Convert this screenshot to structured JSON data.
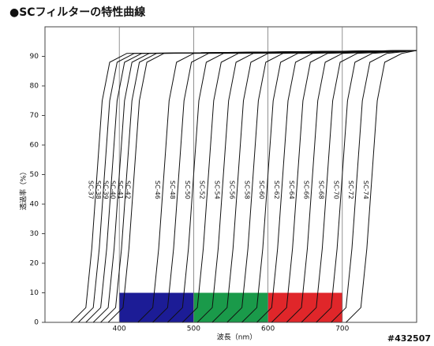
{
  "chart_data": {
    "type": "line",
    "title": "●SCフィルターの特性曲線",
    "xlabel": "波長（nm）",
    "ylabel": "透過率（%）",
    "watermark": "#432507",
    "xlim": [
      300,
      800
    ],
    "ylim": [
      0,
      100
    ],
    "xticks": [
      400,
      500,
      600,
      700
    ],
    "yticks": [
      0,
      10,
      20,
      30,
      40,
      50,
      60,
      70,
      80,
      90
    ],
    "grid": "x",
    "band_top": 10,
    "bands": [
      {
        "from": 400,
        "to": 500,
        "color": "#1c1c96"
      },
      {
        "from": 500,
        "to": 600,
        "color": "#1a9a4a"
      },
      {
        "from": 600,
        "to": 700,
        "color": "#e0262a"
      }
    ],
    "series": [
      {
        "name": "SC-37",
        "color": "#111",
        "x": [
          335,
          355,
          363,
          370,
          377,
          387,
          410,
          800
        ],
        "values": [
          0,
          5,
          25,
          50,
          75,
          88,
          91,
          92
        ]
      },
      {
        "name": "SC-38",
        "color": "#111",
        "x": [
          345,
          365,
          373,
          380,
          387,
          397,
          420,
          800
        ],
        "values": [
          0,
          5,
          25,
          50,
          75,
          88,
          91,
          92
        ]
      },
      {
        "name": "SC-39",
        "color": "#111",
        "x": [
          355,
          375,
          383,
          390,
          397,
          407,
          430,
          800
        ],
        "values": [
          0,
          5,
          25,
          50,
          75,
          88,
          91,
          92
        ]
      },
      {
        "name": "SC-40",
        "color": "#111",
        "x": [
          365,
          385,
          393,
          400,
          407,
          417,
          440,
          800
        ],
        "values": [
          0,
          5,
          25,
          50,
          75,
          88,
          91,
          92
        ]
      },
      {
        "name": "SC-41",
        "color": "#111",
        "x": [
          375,
          395,
          403,
          410,
          417,
          427,
          450,
          800
        ],
        "values": [
          0,
          5,
          25,
          50,
          75,
          88,
          91,
          92
        ]
      },
      {
        "name": "SC-42",
        "color": "#111",
        "x": [
          385,
          405,
          413,
          420,
          427,
          437,
          460,
          800
        ],
        "values": [
          0,
          5,
          25,
          50,
          75,
          88,
          91,
          92
        ]
      },
      {
        "name": "SC-46",
        "color": "#111",
        "x": [
          425,
          445,
          453,
          460,
          467,
          477,
          500,
          800
        ],
        "values": [
          0,
          5,
          25,
          50,
          75,
          88,
          91,
          92
        ]
      },
      {
        "name": "SC-48",
        "color": "#111",
        "x": [
          445,
          465,
          473,
          480,
          487,
          497,
          520,
          800
        ],
        "values": [
          0,
          5,
          25,
          50,
          75,
          88,
          91,
          92
        ]
      },
      {
        "name": "SC-50",
        "color": "#111",
        "x": [
          465,
          485,
          493,
          500,
          507,
          517,
          540,
          800
        ],
        "values": [
          0,
          5,
          25,
          50,
          75,
          88,
          91,
          92
        ]
      },
      {
        "name": "SC-52",
        "color": "#111",
        "x": [
          485,
          505,
          513,
          520,
          527,
          537,
          560,
          800
        ],
        "values": [
          0,
          5,
          25,
          50,
          75,
          88,
          91,
          92
        ]
      },
      {
        "name": "SC-54",
        "color": "#111",
        "x": [
          505,
          525,
          533,
          540,
          547,
          557,
          580,
          800
        ],
        "values": [
          0,
          5,
          25,
          50,
          75,
          88,
          91,
          92
        ]
      },
      {
        "name": "SC-56",
        "color": "#111",
        "x": [
          525,
          545,
          553,
          560,
          567,
          577,
          600,
          800
        ],
        "values": [
          0,
          5,
          25,
          50,
          75,
          88,
          91,
          92
        ]
      },
      {
        "name": "SC-58",
        "color": "#111",
        "x": [
          545,
          565,
          573,
          580,
          587,
          597,
          620,
          800
        ],
        "values": [
          0,
          5,
          25,
          50,
          75,
          88,
          91,
          92
        ]
      },
      {
        "name": "SC-60",
        "color": "#111",
        "x": [
          565,
          585,
          593,
          600,
          607,
          617,
          640,
          800
        ],
        "values": [
          0,
          5,
          25,
          50,
          75,
          88,
          91,
          92
        ]
      },
      {
        "name": "SC-62",
        "color": "#111",
        "x": [
          585,
          605,
          613,
          620,
          627,
          637,
          660,
          800
        ],
        "values": [
          0,
          5,
          25,
          50,
          75,
          88,
          91,
          92
        ]
      },
      {
        "name": "SC-64",
        "color": "#111",
        "x": [
          605,
          625,
          633,
          640,
          647,
          657,
          680,
          800
        ],
        "values": [
          0,
          5,
          25,
          50,
          75,
          88,
          91,
          92
        ]
      },
      {
        "name": "SC-66",
        "color": "#111",
        "x": [
          625,
          645,
          653,
          660,
          667,
          677,
          700,
          800
        ],
        "values": [
          0,
          5,
          25,
          50,
          75,
          88,
          91,
          92
        ]
      },
      {
        "name": "SC-68",
        "color": "#111",
        "x": [
          645,
          665,
          673,
          680,
          687,
          697,
          720,
          800
        ],
        "values": [
          0,
          5,
          25,
          50,
          75,
          88,
          91,
          92
        ]
      },
      {
        "name": "SC-70",
        "color": "#111",
        "x": [
          665,
          685,
          693,
          700,
          707,
          717,
          740,
          800
        ],
        "values": [
          0,
          5,
          25,
          50,
          75,
          88,
          91,
          92
        ]
      },
      {
        "name": "SC-72",
        "color": "#111",
        "x": [
          685,
          705,
          713,
          720,
          727,
          737,
          760,
          800
        ],
        "values": [
          0,
          5,
          25,
          50,
          75,
          88,
          91,
          92
        ]
      },
      {
        "name": "SC-74",
        "color": "#111",
        "x": [
          705,
          725,
          733,
          740,
          747,
          757,
          780,
          800
        ],
        "values": [
          0,
          5,
          25,
          50,
          75,
          88,
          91,
          92
        ]
      }
    ]
  }
}
